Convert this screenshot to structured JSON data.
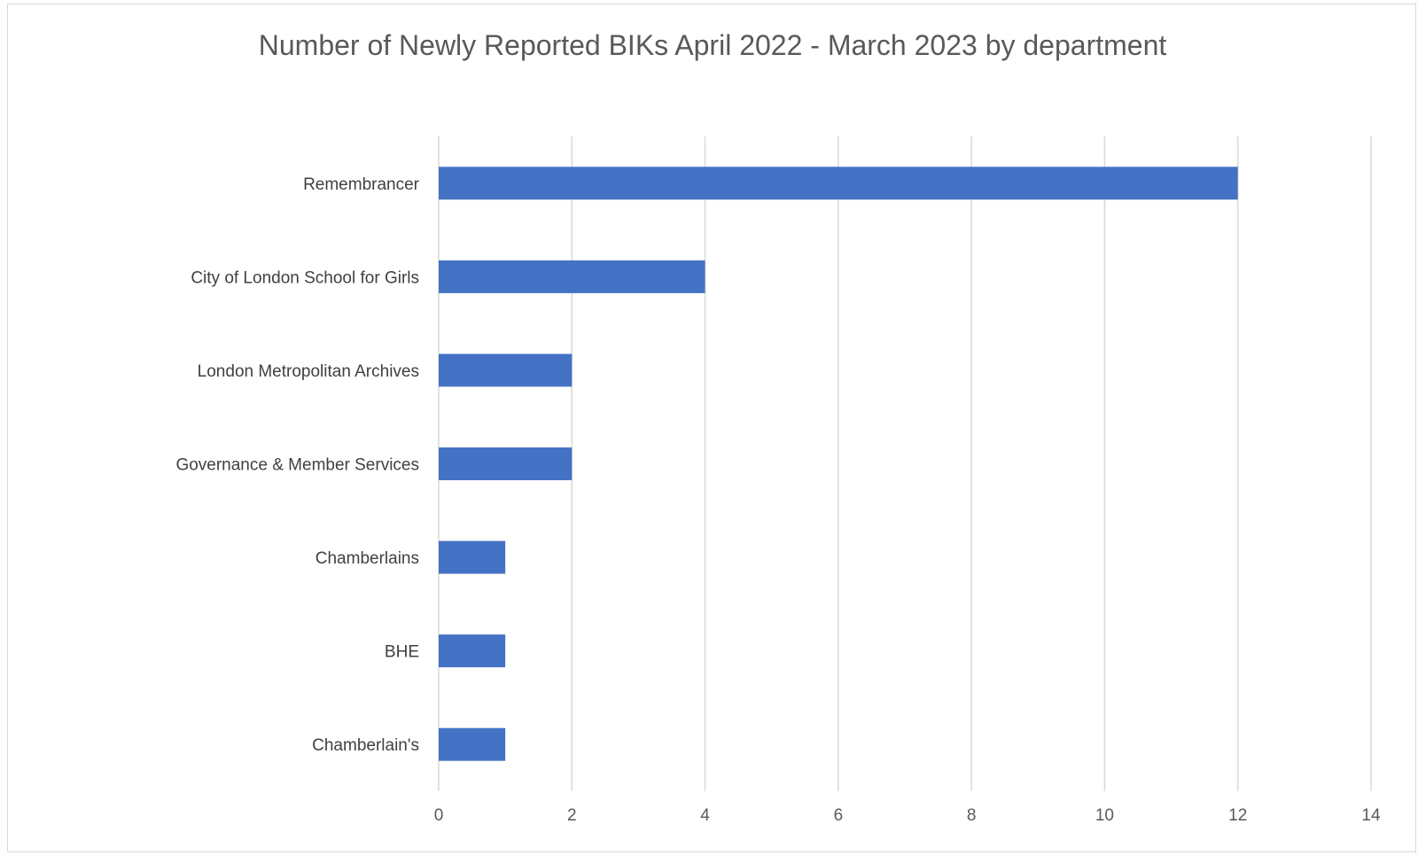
{
  "chart_data": {
    "type": "bar",
    "orientation": "horizontal",
    "title": "Number of Newly Reported BIKs April 2022 - March 2023 by department",
    "categories": [
      "Remembrancer",
      "City of London School for Girls",
      "London Metropolitan Archives",
      "Governance & Member Services",
      "Chamberlains",
      "BHE",
      "Chamberlain's"
    ],
    "values": [
      12,
      4,
      2,
      2,
      1,
      1,
      1
    ],
    "xlim": [
      0,
      14
    ],
    "x_ticks": [
      0,
      2,
      4,
      6,
      8,
      10,
      12,
      14
    ],
    "grid": "vertical",
    "bar_color": "#4472C4",
    "legend": "none"
  }
}
